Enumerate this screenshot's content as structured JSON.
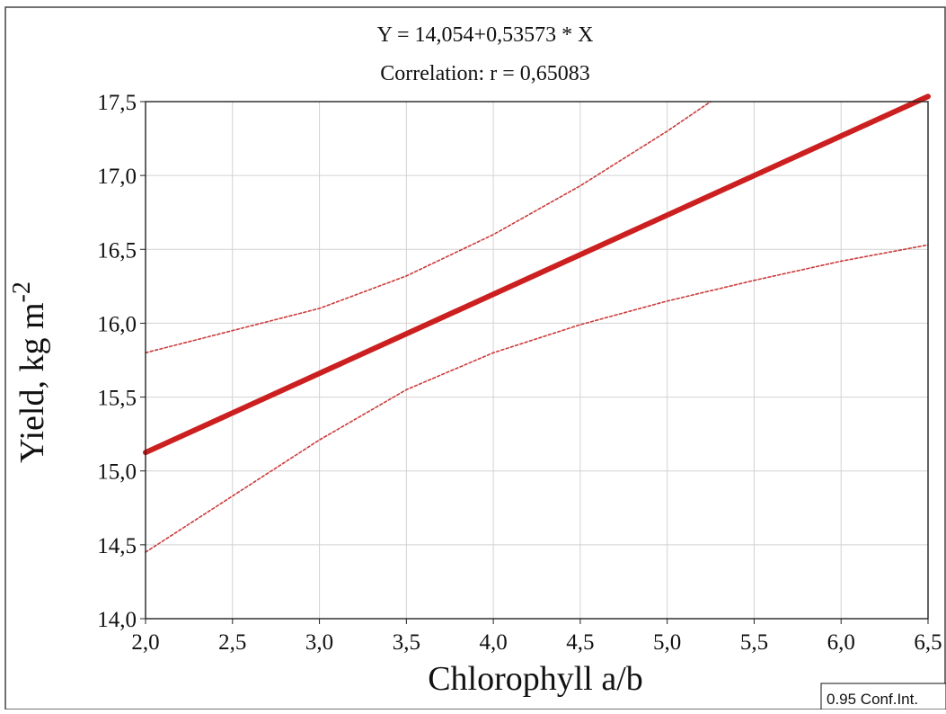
{
  "chart_data": {
    "type": "line",
    "title": "Y = 14,054+0,53573 * X",
    "subtitle": "Correlation: r = 0,65083",
    "xlabel": "Chlorophyll a/b",
    "ylabel_main": "Yield, kg m",
    "ylabel_superscript": "-2",
    "xlim": [
      2.0,
      6.5
    ],
    "ylim": [
      14.0,
      17.5
    ],
    "x_ticks": [
      2.0,
      2.5,
      3.0,
      3.5,
      4.0,
      4.5,
      5.0,
      5.5,
      6.0,
      6.5
    ],
    "x_tick_labels": [
      "2,0",
      "2,5",
      "3,0",
      "3,5",
      "4,0",
      "4,5",
      "5,0",
      "5,5",
      "6,0",
      "6,5"
    ],
    "y_ticks": [
      14.0,
      14.5,
      15.0,
      15.5,
      16.0,
      16.5,
      17.0,
      17.5
    ],
    "y_tick_labels": [
      "14,0",
      "14,5",
      "15,0",
      "15,5",
      "16,0",
      "16,5",
      "17,0",
      "17,5"
    ],
    "grid": true,
    "legend": {
      "placement": "bottom-right",
      "label": "0.95 Conf.Int."
    },
    "series": [
      {
        "role": "regression",
        "color": "#cc1f1f",
        "style": "solid",
        "x": [
          2.0,
          6.5
        ],
        "y": [
          15.125,
          17.535
        ]
      },
      {
        "role": "upper-ci",
        "color": "#cc3b3b",
        "style": "dashed",
        "x": [
          2.0,
          2.5,
          3.0,
          3.5,
          4.0,
          4.5,
          5.0,
          5.25
        ],
        "y": [
          15.8,
          15.95,
          16.1,
          16.32,
          16.6,
          16.93,
          17.3,
          17.5
        ]
      },
      {
        "role": "lower-ci",
        "color": "#cc3b3b",
        "style": "dashed",
        "x": [
          2.0,
          2.5,
          3.0,
          3.5,
          4.0,
          4.5,
          5.0,
          5.5,
          6.0,
          6.5
        ],
        "y": [
          14.45,
          14.83,
          15.21,
          15.55,
          15.8,
          15.99,
          16.15,
          16.29,
          16.42,
          16.53
        ]
      }
    ]
  }
}
